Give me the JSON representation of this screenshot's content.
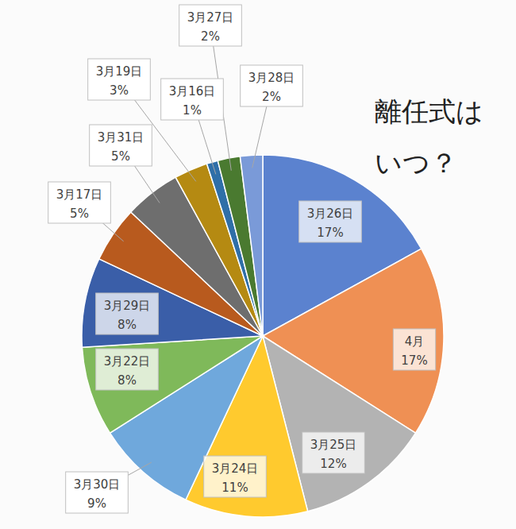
{
  "chart_data": {
    "type": "pie",
    "title": "離任式はいつ？",
    "categories": [
      "3月26日",
      "4月",
      "3月25日",
      "3月24日",
      "3月30日",
      "3月22日",
      "3月29日",
      "3月17日",
      "3月31日",
      "3月19日",
      "3月16日",
      "3月27日",
      "3月28日"
    ],
    "values": [
      17,
      17,
      12,
      11,
      9,
      8,
      8,
      5,
      5,
      3,
      1,
      2,
      2
    ],
    "value_labels": [
      "17%",
      "17%",
      "12%",
      "11%",
      "9%",
      "8%",
      "8%",
      "5%",
      "5%",
      "3%",
      "1%",
      "2%",
      "2%"
    ],
    "colors": [
      "#5b82cf",
      "#ef9054",
      "#b3b3b3",
      "#ffca2e",
      "#6fa8dc",
      "#7fb95a",
      "#3a5ea8",
      "#b85a1e",
      "#6e6e6e",
      "#b58a12",
      "#2f6fa8",
      "#4a7a30",
      "#7a9ad8"
    ],
    "data_labels": true
  }
}
